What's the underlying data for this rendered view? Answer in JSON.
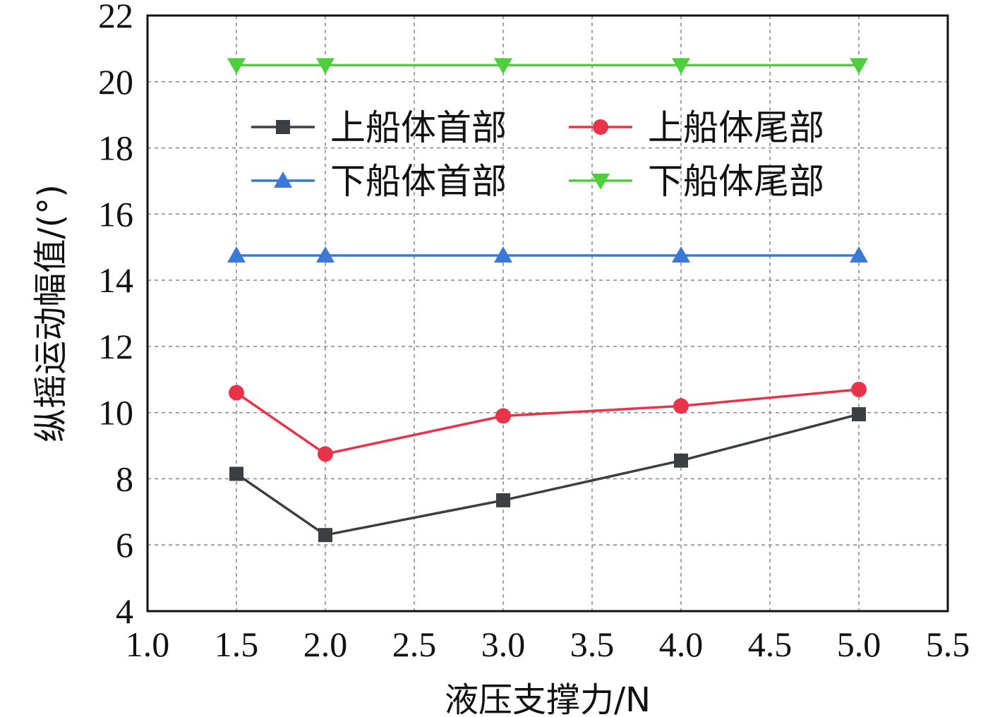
{
  "chart_data": {
    "type": "line",
    "xlabel": "液压支撑力/N",
    "ylabel": "纵摇运动幅值/(°)",
    "xlim": [
      1.0,
      5.5
    ],
    "ylim": [
      4,
      22
    ],
    "xticks": [
      "1.0",
      "1.5",
      "2.0",
      "2.5",
      "3.0",
      "3.5",
      "4.0",
      "4.5",
      "5.0",
      "5.5"
    ],
    "yticks": [
      "4",
      "6",
      "8",
      "10",
      "12",
      "14",
      "16",
      "18",
      "20",
      "22"
    ],
    "grid": true,
    "legend_position": "top-center",
    "x": [
      1.5,
      2.0,
      3.0,
      4.0,
      5.0
    ],
    "series": [
      {
        "name": "上船体首部",
        "values": [
          8.15,
          6.3,
          7.35,
          8.55,
          9.95
        ],
        "color": "#3b3f42",
        "marker": "square"
      },
      {
        "name": "上船体尾部",
        "values": [
          10.6,
          8.75,
          9.9,
          10.2,
          10.7
        ],
        "color": "#e8334a",
        "marker": "circle"
      },
      {
        "name": "下船体首部",
        "values": [
          14.75,
          14.75,
          14.75,
          14.75,
          14.75
        ],
        "color": "#3a79d6",
        "marker": "triangle-up"
      },
      {
        "name": "下船体尾部",
        "values": [
          20.5,
          20.5,
          20.5,
          20.5,
          20.5
        ],
        "color": "#4fcf3e",
        "marker": "triangle-down"
      }
    ]
  }
}
